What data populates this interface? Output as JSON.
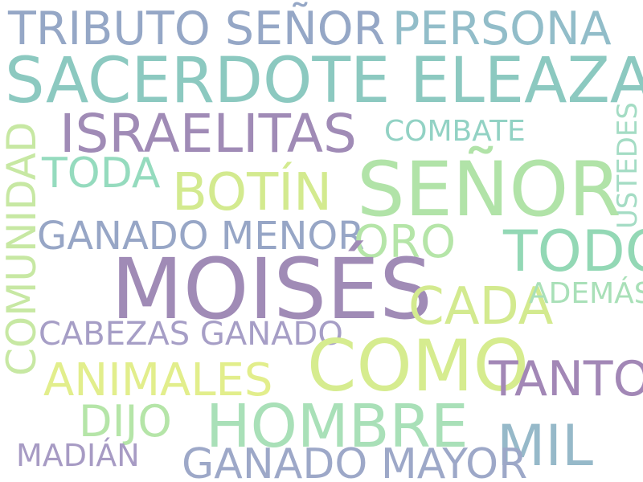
{
  "words": [
    {
      "text": "TRIBUTO SEÑOR",
      "color": "#95a7c6"
    },
    {
      "text": "PERSONA",
      "color": "#92bdc9"
    },
    {
      "text": "SACERDOTE ELEAZAR",
      "color": "#8cc9c0"
    },
    {
      "text": "ISRAELITAS",
      "color": "#a08bb6"
    },
    {
      "text": "COMBATE",
      "color": "#92d2c4"
    },
    {
      "text": "USTEDES",
      "color": "#a4dcc4"
    },
    {
      "text": "COMUNIDAD",
      "color": "#c7e8a3"
    },
    {
      "text": "TODA",
      "color": "#95dbbe"
    },
    {
      "text": "BOTÍN",
      "color": "#d3ea8f"
    },
    {
      "text": "SEÑOR",
      "color": "#b1e3a8"
    },
    {
      "text": "GANADO MENOR",
      "color": "#97a6c6"
    },
    {
      "text": "ORO",
      "color": "#b5e5a8"
    },
    {
      "text": "TODO",
      "color": "#93d8b5"
    },
    {
      "text": "MOISÉS",
      "color": "#a08bb6"
    },
    {
      "text": "CADA",
      "color": "#d3ea8f"
    },
    {
      "text": "ADEMÁS",
      "color": "#a9e0b8"
    },
    {
      "text": "CABEZAS GANADO",
      "color": "#a69ec6"
    },
    {
      "text": "COMO",
      "color": "#d6ec8f"
    },
    {
      "text": "TANTO",
      "color": "#a287b6"
    },
    {
      "text": "ANIMALES",
      "color": "#e2ee8c"
    },
    {
      "text": "DIJO",
      "color": "#b5e5a8"
    },
    {
      "text": "HOMBRE",
      "color": "#a9e0b8"
    },
    {
      "text": "MIL",
      "color": "#96b9c9"
    },
    {
      "text": "MADIÁN",
      "color": "#a79bc4"
    },
    {
      "text": "GANADO MAYOR",
      "color": "#9da8c8"
    }
  ]
}
